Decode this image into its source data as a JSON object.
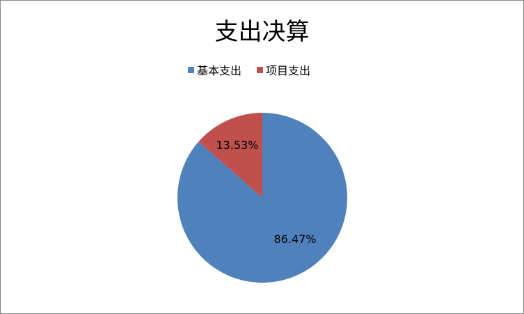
{
  "chart_data": {
    "type": "pie",
    "title": "支出决算",
    "legend_position": "top",
    "series": [
      {
        "name": "基本支出",
        "value": 86.47,
        "label": "86.47%",
        "color": "#4F81BD"
      },
      {
        "name": "项目支出",
        "value": 13.53,
        "label": "13.53%",
        "color": "#C0504D"
      }
    ]
  }
}
